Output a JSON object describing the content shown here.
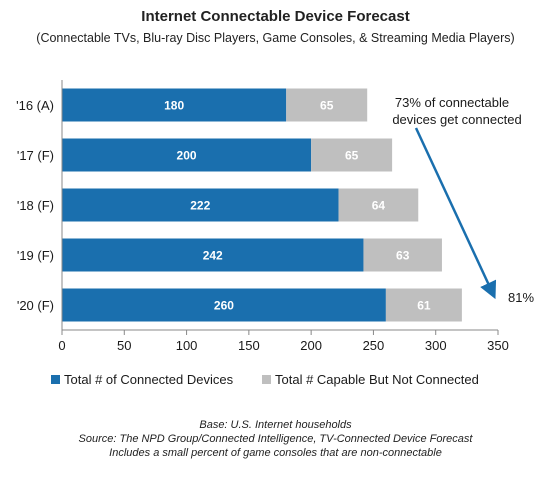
{
  "chart_data": {
    "type": "bar",
    "orientation": "horizontal",
    "stacked": true,
    "title": "Internet Connectable Device Forecast",
    "subtitle": "(Connectable TVs, Blu-ray Disc Players, Game Consoles, & Streaming Media Players)",
    "categories": [
      "'16 (A)",
      "'17 (F)",
      "'18 (F)",
      "'19 (F)",
      "'20 (F)"
    ],
    "series": [
      {
        "name": "Total # of Connected Devices",
        "color": "#1a6fae",
        "values": [
          180,
          200,
          222,
          242,
          260
        ]
      },
      {
        "name": "Total # Capable But Not Connected",
        "color": "#bfbfbf",
        "values": [
          65,
          65,
          64,
          63,
          61
        ]
      }
    ],
    "xlim": [
      0,
      350
    ],
    "xticks": [
      0,
      50,
      100,
      150,
      200,
      250,
      300,
      350
    ],
    "grid": false,
    "legend_position": "bottom",
    "annotations": {
      "start_text_line1": "73% of connectable",
      "start_text_line2": "devices get connected",
      "end_text": "81%",
      "arrow_color": "#1a6fae"
    }
  },
  "footer": {
    "line1": "Base: U.S. Internet households",
    "line2": "Source: The NPD Group/Connected Intelligence, TV-Connected Device Forecast",
    "line3": "Includes a small percent of game consoles that are non-connectable"
  }
}
